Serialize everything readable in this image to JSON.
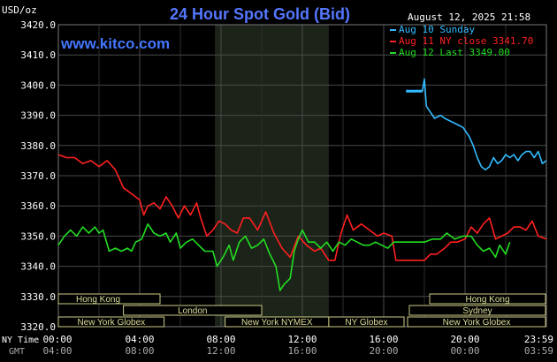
{
  "chart_data": {
    "type": "line",
    "title": "24 Hour Spot Gold (Bid)",
    "site": "www.kitco.com",
    "timestamp": "August 12, 2025 21:58",
    "y_unit": "USD/oz",
    "ylim": [
      3320,
      3420
    ],
    "y_ticks": [
      "3420.0",
      "3410.0",
      "3400.0",
      "3390.0",
      "3380.0",
      "3370.0",
      "3360.0",
      "3350.0",
      "3340.0",
      "3330.0",
      "3320.0"
    ],
    "x_hours": [
      0,
      24
    ],
    "x_ticks": [
      {
        "h": 0,
        "ny": "00:00",
        "gmt": "04:00"
      },
      {
        "h": 4,
        "ny": "04:00",
        "gmt": "08:00"
      },
      {
        "h": 8,
        "ny": "08:00",
        "gmt": "12:00"
      },
      {
        "h": 12,
        "ny": "12:00",
        "gmt": "16:00"
      },
      {
        "h": 16,
        "ny": "16:00",
        "gmt": "20:00"
      },
      {
        "h": 20,
        "ny": "20:00",
        "gmt": "00:00"
      },
      {
        "h": 24,
        "ny": "23:59",
        "gmt": "03:59"
      }
    ],
    "x_row_labels": {
      "ny": "NY Time",
      "gmt": "GMT"
    },
    "grid": true,
    "legend_placement": "top-right",
    "shade_hours": [
      7.7,
      13.3
    ],
    "sessions": [
      {
        "label": "Hong Kong",
        "start": 0,
        "end": 5.0,
        "row": 1,
        "text_at": "left"
      },
      {
        "label": "London",
        "start": 3.2,
        "end": 10.0,
        "row": 2,
        "text_at": "center"
      },
      {
        "label": "New York Globex",
        "start": 0,
        "end": 5.2,
        "row": 3,
        "text_at": "center"
      },
      {
        "label": "New York NYMEX",
        "start": 8.2,
        "end": 13.3,
        "row": 3,
        "text_at": "center"
      },
      {
        "label": "NY Globex",
        "start": 13.3,
        "end": 17.0,
        "row": 3,
        "text_at": "center"
      },
      {
        "label": "Hong Kong",
        "start": 18.0,
        "end": 24.0,
        "row": 1,
        "text_at": "center",
        "left_offset": 6
      },
      {
        "label": "Sydney",
        "start": 17.0,
        "end": 24.0,
        "row": 2,
        "text_at": "center",
        "left_offset": 6
      },
      {
        "label": "New York Globex",
        "start": 17.0,
        "end": 24.0,
        "row": 3,
        "text_at": "center",
        "left_offset": 4
      }
    ],
    "series": [
      {
        "name": "Aug 10 Sunday",
        "color": "#33bbff",
        "points": [
          [
            17.1,
            3398
          ],
          [
            17.4,
            3398
          ],
          [
            17.6,
            3398
          ],
          [
            17.9,
            3398
          ],
          [
            18.0,
            3402
          ],
          [
            18.1,
            3393
          ],
          [
            18.3,
            3391
          ],
          [
            18.5,
            3389
          ],
          [
            18.8,
            3390
          ],
          [
            19.0,
            3389
          ],
          [
            19.3,
            3388
          ],
          [
            19.6,
            3387
          ],
          [
            19.9,
            3386
          ],
          [
            20.2,
            3383
          ],
          [
            20.4,
            3380
          ],
          [
            20.6,
            3376
          ],
          [
            20.8,
            3373
          ],
          [
            21.0,
            3372
          ],
          [
            21.2,
            3373
          ],
          [
            21.4,
            3376
          ],
          [
            21.6,
            3374
          ],
          [
            21.8,
            3375
          ],
          [
            22.0,
            3377
          ],
          [
            22.2,
            3376
          ],
          [
            22.4,
            3377
          ],
          [
            22.6,
            3375
          ],
          [
            22.8,
            3377
          ],
          [
            23.0,
            3378
          ],
          [
            23.2,
            3378
          ],
          [
            23.4,
            3376
          ],
          [
            23.6,
            3378
          ],
          [
            23.8,
            3374
          ],
          [
            24.0,
            3375
          ]
        ]
      },
      {
        "name": "Aug 11 NY close 3341.70",
        "color": "#ff2020",
        "points": [
          [
            0,
            3377
          ],
          [
            0.4,
            3376
          ],
          [
            0.8,
            3376
          ],
          [
            1.2,
            3374
          ],
          [
            1.6,
            3375
          ],
          [
            2.0,
            3373
          ],
          [
            2.4,
            3375
          ],
          [
            2.8,
            3372
          ],
          [
            3.2,
            3366
          ],
          [
            3.6,
            3364
          ],
          [
            4.0,
            3362
          ],
          [
            4.2,
            3357
          ],
          [
            4.4,
            3360
          ],
          [
            4.7,
            3361
          ],
          [
            5.0,
            3359
          ],
          [
            5.3,
            3363
          ],
          [
            5.6,
            3360
          ],
          [
            5.9,
            3356
          ],
          [
            6.2,
            3360
          ],
          [
            6.5,
            3357
          ],
          [
            6.8,
            3361
          ],
          [
            7.0,
            3356
          ],
          [
            7.3,
            3350
          ],
          [
            7.6,
            3352
          ],
          [
            7.9,
            3355
          ],
          [
            8.2,
            3354
          ],
          [
            8.5,
            3352
          ],
          [
            8.8,
            3351
          ],
          [
            9.1,
            3356
          ],
          [
            9.4,
            3356
          ],
          [
            9.8,
            3352
          ],
          [
            10.2,
            3358
          ],
          [
            10.6,
            3351
          ],
          [
            11.0,
            3346
          ],
          [
            11.4,
            3343
          ],
          [
            11.8,
            3350
          ],
          [
            12.2,
            3347
          ],
          [
            12.6,
            3345
          ],
          [
            12.9,
            3346
          ],
          [
            13.3,
            3342
          ],
          [
            13.6,
            3342
          ],
          [
            13.9,
            3351
          ],
          [
            14.2,
            3357
          ],
          [
            14.5,
            3352
          ],
          [
            14.9,
            3354
          ],
          [
            15.3,
            3352
          ],
          [
            15.7,
            3350
          ],
          [
            16.0,
            3351
          ],
          [
            16.4,
            3350
          ],
          [
            16.6,
            3342
          ],
          [
            17.0,
            3342
          ],
          [
            17.6,
            3342
          ],
          [
            18.0,
            3342
          ],
          [
            18.3,
            3344
          ],
          [
            18.6,
            3344
          ],
          [
            19.0,
            3346
          ],
          [
            19.3,
            3348
          ],
          [
            19.6,
            3348
          ],
          [
            20.0,
            3349
          ],
          [
            20.3,
            3353
          ],
          [
            20.6,
            3351
          ],
          [
            20.9,
            3354
          ],
          [
            21.2,
            3356
          ],
          [
            21.5,
            3349
          ],
          [
            21.8,
            3350
          ],
          [
            22.1,
            3351
          ],
          [
            22.4,
            3353
          ],
          [
            22.7,
            3353
          ],
          [
            23.0,
            3352
          ],
          [
            23.3,
            3355
          ],
          [
            23.6,
            3350
          ],
          [
            24.0,
            3349
          ]
        ]
      },
      {
        "name": "Aug 12 Last 3349.00",
        "color": "#22dd22",
        "points": [
          [
            0,
            3347
          ],
          [
            0.3,
            3350
          ],
          [
            0.6,
            3352
          ],
          [
            0.9,
            3350
          ],
          [
            1.2,
            3353
          ],
          [
            1.5,
            3351
          ],
          [
            1.8,
            3353
          ],
          [
            2.0,
            3351
          ],
          [
            2.2,
            3352
          ],
          [
            2.5,
            3345
          ],
          [
            2.8,
            3346
          ],
          [
            3.1,
            3345
          ],
          [
            3.4,
            3346
          ],
          [
            3.6,
            3345
          ],
          [
            3.8,
            3348
          ],
          [
            4.1,
            3349
          ],
          [
            4.4,
            3354
          ],
          [
            4.7,
            3351
          ],
          [
            5.0,
            3350
          ],
          [
            5.3,
            3351
          ],
          [
            5.5,
            3348
          ],
          [
            5.8,
            3351
          ],
          [
            6.0,
            3346
          ],
          [
            6.3,
            3348
          ],
          [
            6.6,
            3349
          ],
          [
            6.9,
            3347
          ],
          [
            7.2,
            3345
          ],
          [
            7.6,
            3345
          ],
          [
            7.8,
            3340
          ],
          [
            8.1,
            3343
          ],
          [
            8.4,
            3347
          ],
          [
            8.6,
            3342
          ],
          [
            8.9,
            3348
          ],
          [
            9.2,
            3350
          ],
          [
            9.5,
            3346
          ],
          [
            9.8,
            3347
          ],
          [
            10.1,
            3349
          ],
          [
            10.4,
            3344
          ],
          [
            10.7,
            3340
          ],
          [
            10.9,
            3332
          ],
          [
            11.1,
            3334
          ],
          [
            11.4,
            3336
          ],
          [
            11.6,
            3345
          ],
          [
            11.8,
            3349
          ],
          [
            12.0,
            3352
          ],
          [
            12.3,
            3348
          ],
          [
            12.6,
            3348
          ],
          [
            12.9,
            3346
          ],
          [
            13.2,
            3348
          ],
          [
            13.5,
            3345
          ],
          [
            13.8,
            3348
          ],
          [
            14.1,
            3347
          ],
          [
            14.4,
            3349
          ],
          [
            14.7,
            3348
          ],
          [
            15.0,
            3347
          ],
          [
            15.3,
            3347
          ],
          [
            15.6,
            3348
          ],
          [
            15.9,
            3347
          ],
          [
            16.2,
            3346
          ],
          [
            16.5,
            3348
          ],
          [
            16.8,
            3348
          ],
          [
            17.2,
            3348
          ],
          [
            17.6,
            3348
          ],
          [
            18.0,
            3348
          ],
          [
            18.4,
            3349
          ],
          [
            18.8,
            3349
          ],
          [
            19.1,
            3351
          ],
          [
            19.5,
            3349
          ],
          [
            19.9,
            3350
          ],
          [
            20.3,
            3350
          ],
          [
            20.6,
            3347
          ],
          [
            20.9,
            3345
          ],
          [
            21.2,
            3346
          ],
          [
            21.5,
            3343
          ],
          [
            21.7,
            3347
          ],
          [
            22.0,
            3344
          ],
          [
            22.2,
            3348
          ]
        ]
      }
    ]
  }
}
